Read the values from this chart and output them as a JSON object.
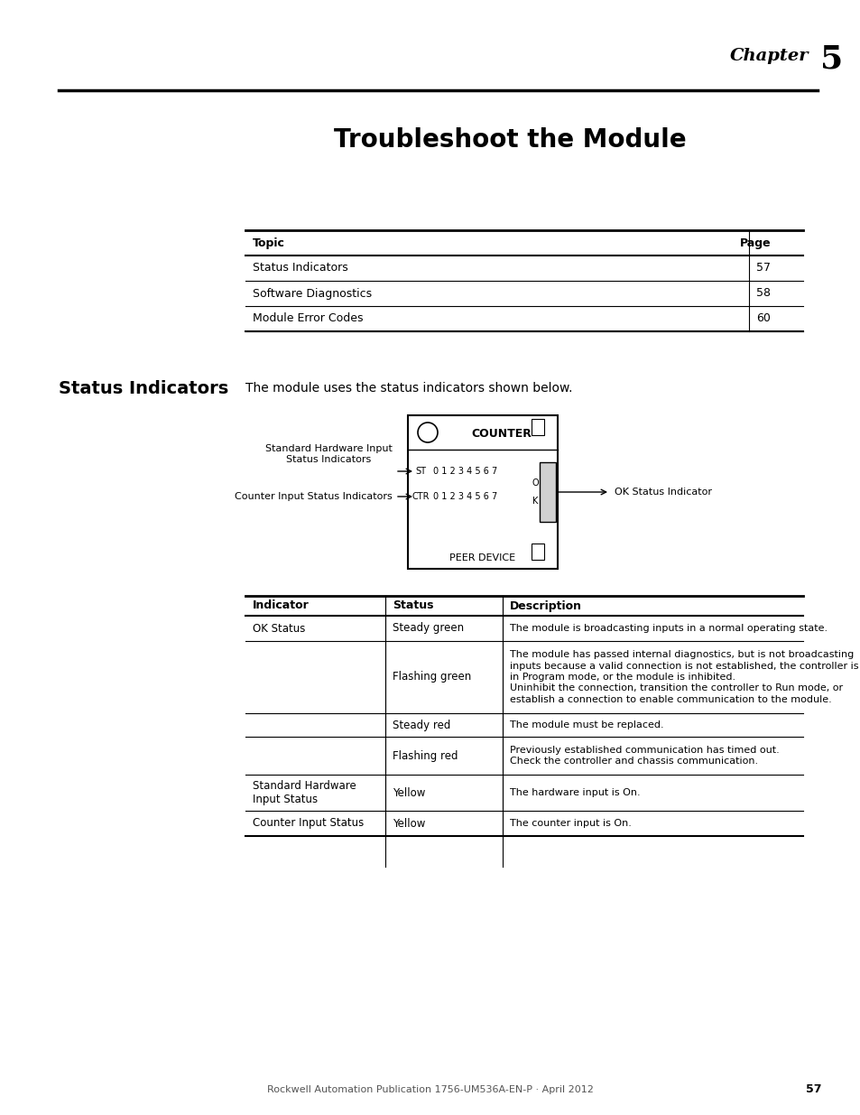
{
  "chapter_label": "Chapter",
  "chapter_number": "5",
  "page_title": "Troubleshoot the Module",
  "toc_table": {
    "headers": [
      "Topic",
      "Page"
    ],
    "rows": [
      [
        "Status Indicators",
        "57"
      ],
      [
        "Software Diagnostics",
        "58"
      ],
      [
        "Module Error Codes",
        "60"
      ]
    ]
  },
  "section_heading": "Status Indicators",
  "section_intro": "The module uses the status indicators shown below.",
  "diagram": {
    "title": "COUNTER",
    "peer_device": "PEER DEVICE",
    "st_label": "ST",
    "ctr_label": "CTR",
    "numbers": "0 1 2 3 4 5 6 7",
    "arrow_left1_label": "Standard Hardware Input\nStatus Indicators",
    "arrow_left2_label": "Counter Input Status Indicators",
    "arrow_right_label": "OK Status Indicator"
  },
  "status_table": {
    "headers": [
      "Indicator",
      "Status",
      "Description"
    ],
    "rows": [
      {
        "indicator": "OK Status",
        "status": "Steady green",
        "description": "The module is broadcasting inputs in a normal operating state."
      },
      {
        "indicator": "",
        "status": "Flashing green",
        "description": "The module has passed internal diagnostics, but is not broadcasting\ninputs because a valid connection is not established, the controller is\nin Program mode, or the module is inhibited.\nUninhibit the connection, transition the controller to Run mode, or\nestablish a connection to enable communication to the module."
      },
      {
        "indicator": "",
        "status": "Steady red",
        "description": "The module must be replaced."
      },
      {
        "indicator": "",
        "status": "Flashing red",
        "description": "Previously established communication has timed out.\nCheck the controller and chassis communication."
      },
      {
        "indicator": "Standard Hardware\nInput Status",
        "status": "Yellow",
        "description": "The hardware input is On."
      },
      {
        "indicator": "Counter Input Status",
        "status": "Yellow",
        "description": "The counter input is On."
      }
    ]
  },
  "footer_text": "Rockwell Automation Publication 1756-UM536A-EN-P · April 2012",
  "footer_page": "57",
  "bg_color": "#ffffff"
}
